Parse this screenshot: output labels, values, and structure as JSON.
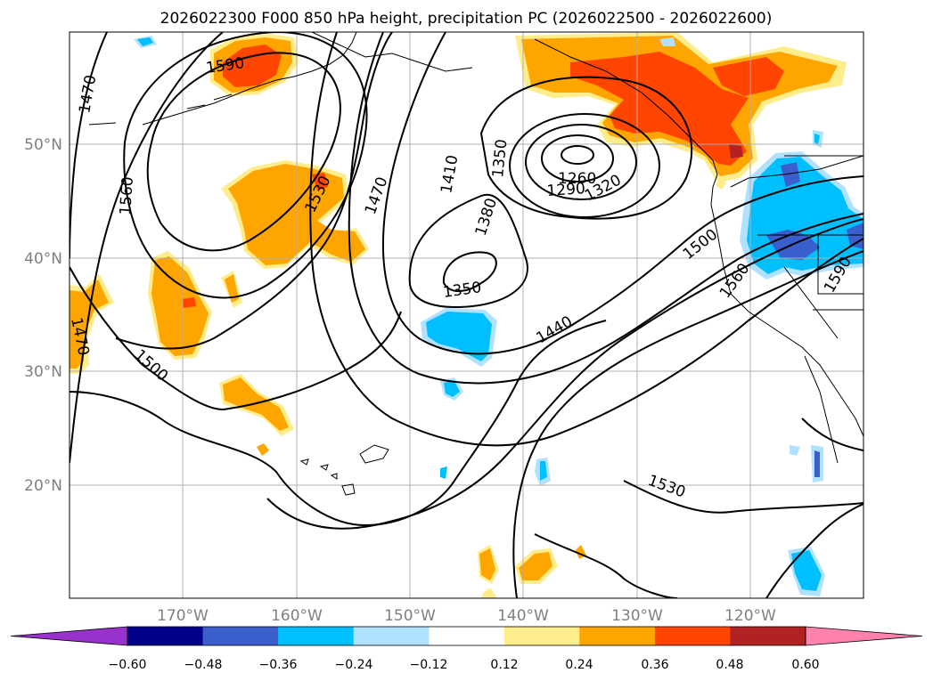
{
  "title": "2026022300 F000 850 hPa height, precipitation PC (2026022500 - 2026022600)",
  "lat_labels": [
    "50°N",
    "40°N",
    "30°N",
    "20°N"
  ],
  "lon_labels": [
    "170°W",
    "160°W",
    "150°W",
    "140°W",
    "130°W",
    "120°W"
  ],
  "contour_labels": {
    "c1590_nw": "1590",
    "c1470_w": "1470",
    "c1560": "1560",
    "c1530_w": "1530",
    "c1470_mid": "1470",
    "c1410": "1410",
    "c1350_top": "1350",
    "c1380": "1380",
    "c1260": "1260",
    "c1290": "1290",
    "c1320": "1320",
    "c1350_low": "1350",
    "c1440": "1440",
    "c1500_e": "1500",
    "c1560_e": "1560",
    "c1590_e": "1590",
    "c1530_s": "1530",
    "c1470_sw": "1470",
    "c1500_sw": "1500"
  },
  "colorbar": {
    "ticks": [
      "−0.60",
      "−0.48",
      "−0.36",
      "−0.24",
      "−0.12",
      "0.12",
      "0.24",
      "0.36",
      "0.48",
      "0.60"
    ],
    "colors": [
      "#9932cc",
      "#00008b",
      "#3a5fcd",
      "#00bfff",
      "#b0e2ff",
      "#ffffff",
      "#ffec8b",
      "#ffa500",
      "#ff4500",
      "#b22222",
      "#ff82ab"
    ]
  },
  "palette": {
    "light_yellow": "#ffec8b",
    "orange": "#ffa500",
    "red_orange": "#ff4500",
    "dark_red": "#b22222",
    "light_blue": "#b0e2ff",
    "sky_blue": "#00bfff",
    "mid_blue": "#3a5fcd"
  }
}
